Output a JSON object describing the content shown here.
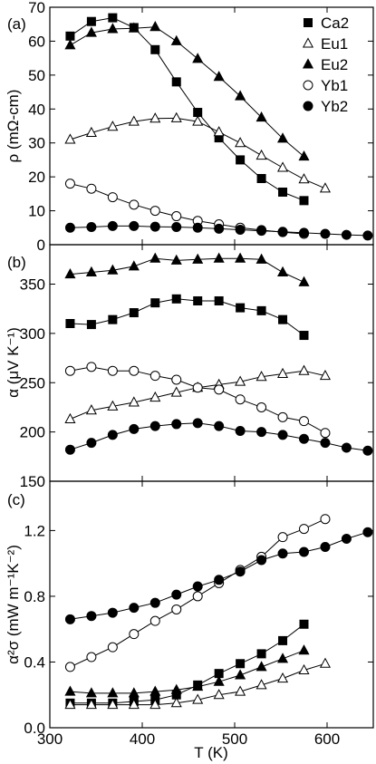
{
  "colors": {
    "line": "#000000",
    "filled": "#000000",
    "open": "#ffffff"
  },
  "chart_data": [
    {
      "type": "line",
      "panel_label": "(a)",
      "ylabel": "ρ (mΩ-cm)",
      "ylim": [
        0,
        70
      ],
      "yticks": [
        0,
        10,
        20,
        30,
        40,
        50,
        60,
        70
      ],
      "xlim": [
        300,
        650
      ],
      "legend_placement": "top-right",
      "series": [
        {
          "name": "Ca2",
          "marker": "square",
          "filled": true,
          "x": [
            322,
            345,
            368,
            391,
            414,
            437,
            460,
            483,
            506,
            529,
            552,
            575
          ],
          "y": [
            61.5,
            65.8,
            66.9,
            64.0,
            57.5,
            48.0,
            39.0,
            31.5,
            25.0,
            19.5,
            15.5,
            13.0
          ]
        },
        {
          "name": "Eu1",
          "marker": "triangle",
          "filled": false,
          "x": [
            322,
            345,
            368,
            391,
            414,
            437,
            460,
            483,
            506,
            529,
            552,
            575,
            598
          ],
          "y": [
            31.0,
            33.0,
            34.8,
            36.3,
            37.2,
            37.3,
            36.3,
            33.2,
            30.0,
            26.3,
            22.7,
            19.3,
            16.6
          ]
        },
        {
          "name": "Eu2",
          "marker": "triangle",
          "filled": true,
          "x": [
            322,
            345,
            368,
            391,
            414,
            437,
            460,
            483,
            506,
            529,
            552,
            575
          ],
          "y": [
            58.8,
            62.5,
            63.6,
            63.8,
            64.2,
            60.0,
            54.8,
            49.5,
            43.8,
            37.5,
            31.3,
            26.0
          ]
        },
        {
          "name": "Yb1",
          "marker": "circle",
          "filled": false,
          "x": [
            322,
            345,
            368,
            391,
            414,
            437,
            460,
            483,
            506,
            529,
            552,
            575
          ],
          "y": [
            18.0,
            16.5,
            14.0,
            11.8,
            10.0,
            8.4,
            7.0,
            6.0,
            5.0,
            4.3,
            3.7,
            3.2
          ]
        },
        {
          "name": "Yb2",
          "marker": "circle",
          "filled": true,
          "x": [
            322,
            345,
            368,
            391,
            414,
            437,
            460,
            483,
            506,
            529,
            552,
            575,
            598,
            621,
            644
          ],
          "y": [
            5.0,
            5.2,
            5.5,
            5.5,
            5.3,
            5.2,
            5.0,
            4.7,
            4.4,
            4.1,
            3.8,
            3.5,
            3.2,
            2.9,
            2.7
          ]
        }
      ]
    },
    {
      "type": "line",
      "panel_label": "(b)",
      "ylabel": "α (μV K⁻¹)",
      "ylim": [
        150,
        390
      ],
      "yticks": [
        150,
        200,
        250,
        300,
        350
      ],
      "xlim": [
        300,
        650
      ],
      "series": [
        {
          "name": "Ca2",
          "marker": "square",
          "filled": true,
          "x": [
            322,
            345,
            368,
            391,
            414,
            437,
            460,
            483,
            506,
            529,
            552,
            575
          ],
          "y": [
            310,
            309,
            314,
            321,
            331,
            335,
            333,
            333,
            326,
            323,
            314,
            298
          ]
        },
        {
          "name": "Eu1",
          "marker": "triangle",
          "filled": false,
          "x": [
            322,
            345,
            368,
            391,
            414,
            437,
            460,
            483,
            506,
            529,
            552,
            575,
            598
          ],
          "y": [
            213,
            222,
            226,
            230,
            235,
            240,
            245,
            248,
            251,
            256,
            259,
            262,
            257
          ]
        },
        {
          "name": "Eu2",
          "marker": "triangle",
          "filled": true,
          "x": [
            322,
            345,
            368,
            391,
            414,
            437,
            460,
            483,
            506,
            529,
            552,
            575
          ],
          "y": [
            360,
            362,
            364,
            368,
            376,
            374,
            375,
            376,
            376,
            375,
            362,
            352
          ]
        },
        {
          "name": "Yb1",
          "marker": "circle",
          "filled": false,
          "x": [
            322,
            345,
            368,
            391,
            414,
            437,
            460,
            483,
            506,
            529,
            552,
            575,
            598
          ],
          "y": [
            262,
            266,
            262,
            262,
            257,
            253,
            245,
            243,
            233,
            225,
            215,
            211,
            199
          ]
        },
        {
          "name": "Yb2",
          "marker": "circle",
          "filled": true,
          "x": [
            322,
            345,
            368,
            391,
            414,
            437,
            460,
            483,
            506,
            529,
            552,
            575,
            598,
            621,
            644
          ],
          "y": [
            182,
            189,
            197,
            203,
            206,
            208,
            209,
            206,
            201,
            200,
            197,
            193,
            189,
            184,
            181
          ]
        }
      ]
    },
    {
      "type": "line",
      "panel_label": "(c)",
      "ylabel": "α²σ (mW m⁻¹K⁻²)",
      "ylim": [
        0,
        1.5
      ],
      "yticks": [
        0.0,
        0.4,
        0.8,
        1.2
      ],
      "xlim": [
        300,
        650
      ],
      "xlabel": "T (K)",
      "xticks": [
        300,
        400,
        500,
        600
      ],
      "series": [
        {
          "name": "Ca2",
          "marker": "square",
          "filled": true,
          "x": [
            322,
            345,
            368,
            391,
            414,
            437,
            460,
            483,
            506,
            529,
            552,
            575
          ],
          "y": [
            0.15,
            0.15,
            0.15,
            0.16,
            0.17,
            0.2,
            0.26,
            0.33,
            0.39,
            0.45,
            0.53,
            0.63
          ]
        },
        {
          "name": "Eu1",
          "marker": "triangle",
          "filled": false,
          "x": [
            322,
            345,
            368,
            391,
            414,
            437,
            460,
            483,
            506,
            529,
            552,
            575,
            598
          ],
          "y": [
            0.14,
            0.14,
            0.14,
            0.14,
            0.14,
            0.15,
            0.17,
            0.2,
            0.22,
            0.26,
            0.3,
            0.35,
            0.39
          ]
        },
        {
          "name": "Eu2",
          "marker": "triangle",
          "filled": true,
          "x": [
            322,
            345,
            368,
            391,
            414,
            437,
            460,
            483,
            506,
            529,
            552,
            575
          ],
          "y": [
            0.22,
            0.21,
            0.21,
            0.21,
            0.22,
            0.23,
            0.25,
            0.28,
            0.32,
            0.37,
            0.42,
            0.47
          ]
        },
        {
          "name": "Yb1",
          "marker": "circle",
          "filled": false,
          "x": [
            322,
            345,
            368,
            391,
            414,
            437,
            460,
            483,
            506,
            529,
            552,
            575,
            598
          ],
          "y": [
            0.37,
            0.43,
            0.49,
            0.57,
            0.65,
            0.72,
            0.8,
            0.88,
            0.96,
            1.04,
            1.16,
            1.21,
            1.27
          ]
        },
        {
          "name": "Yb2",
          "marker": "circle",
          "filled": true,
          "x": [
            322,
            345,
            368,
            391,
            414,
            437,
            460,
            483,
            506,
            529,
            552,
            575,
            598,
            621,
            644
          ],
          "y": [
            0.66,
            0.68,
            0.7,
            0.73,
            0.76,
            0.81,
            0.86,
            0.9,
            0.95,
            1.02,
            1.06,
            1.07,
            1.1,
            1.15,
            1.19
          ]
        }
      ]
    }
  ]
}
